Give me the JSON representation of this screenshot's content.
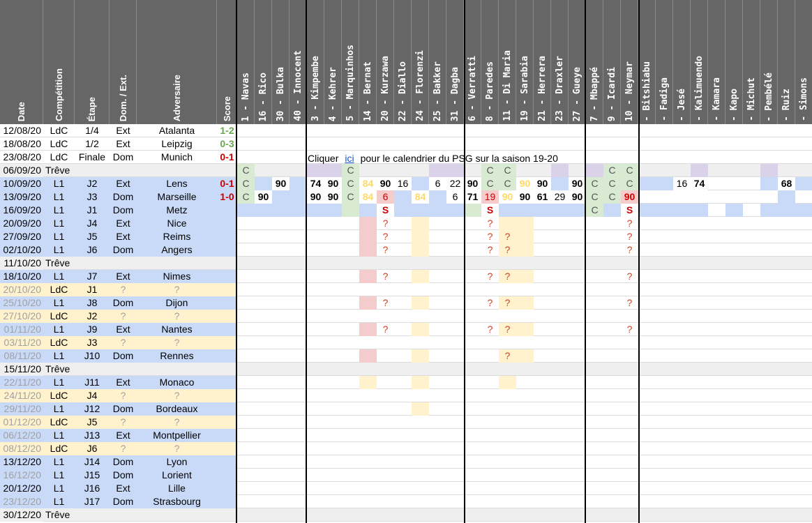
{
  "headers": {
    "left": [
      "Date",
      "Compétition",
      "Étape",
      "Dom. / Ext.",
      "Adversaire",
      "Score"
    ],
    "players": [
      "1 - Navas",
      "16 - Rico",
      "30 - Bulka",
      "40 - Innocent",
      "3 - Kimpembe",
      "4 - Kehrer",
      "5 - Marquinhos",
      "14 - Bernat",
      "20 - Kurzawa",
      "22 - Diallo",
      "24 - Florenzi",
      "25 - Bakker",
      "31 - Dagba",
      "6 - Verratti",
      "8 - Paredes",
      "11 - Di Maria",
      "19 - Sarabia",
      "21 - Herrera",
      "23 - Draxler",
      "27 - Gueye",
      "7 - Mbappé",
      "9 - Icardi",
      "10 - Neymar",
      "- Bitshiabu",
      "- Fadiga",
      "- Jesé",
      "- Kalimuendo",
      "- Kamara",
      "- Kapo",
      "- Michut",
      "- Pembélé",
      "- Ruiz",
      "- Simons"
    ]
  },
  "matches": [
    {
      "date": "12/08/20",
      "comp": "LdC",
      "stage": "1/4",
      "venue": "Ext",
      "opponent": "Atalanta",
      "score": "1-2",
      "score_color": "green",
      "row": "white"
    },
    {
      "date": "18/08/20",
      "comp": "LdC",
      "stage": "1/2",
      "venue": "Ext",
      "opponent": "Leipzig",
      "score": "0-3",
      "score_color": "green",
      "row": "white"
    },
    {
      "date": "23/08/20",
      "comp": "LdC",
      "stage": "Finale",
      "venue": "Dom",
      "opponent": "Munich",
      "score": "0-1",
      "score_color": "red",
      "row": "white"
    },
    {
      "date": "06/09/20",
      "comp": "Trêve",
      "stage": "",
      "venue": "",
      "opponent": "",
      "score": "",
      "row": "treve"
    },
    {
      "date": "10/09/20",
      "comp": "L1",
      "stage": "J2",
      "venue": "Ext",
      "opponent": "Lens",
      "score": "0-1",
      "score_color": "red",
      "row": "l1"
    },
    {
      "date": "13/09/20",
      "comp": "L1",
      "stage": "J3",
      "venue": "Dom",
      "opponent": "Marseille",
      "score": "1-0",
      "score_color": "red",
      "row": "l1"
    },
    {
      "date": "16/09/20",
      "comp": "L1",
      "stage": "J1",
      "venue": "Dom",
      "opponent": "Metz",
      "score": "",
      "row": "l1"
    },
    {
      "date": "20/09/20",
      "comp": "L1",
      "stage": "J4",
      "venue": "Ext",
      "opponent": "Nice",
      "score": "",
      "row": "l1"
    },
    {
      "date": "27/09/20",
      "comp": "L1",
      "stage": "J5",
      "venue": "Ext",
      "opponent": "Reims",
      "score": "",
      "row": "l1"
    },
    {
      "date": "02/10/20",
      "comp": "L1",
      "stage": "J6",
      "venue": "Dom",
      "opponent": "Angers",
      "score": "",
      "row": "l1"
    },
    {
      "date": "11/10/20",
      "comp": "Trêve",
      "stage": "",
      "venue": "",
      "opponent": "",
      "score": "",
      "row": "treve"
    },
    {
      "date": "18/10/20",
      "comp": "L1",
      "stage": "J7",
      "venue": "Ext",
      "opponent": "Nimes",
      "score": "",
      "row": "l1"
    },
    {
      "date": "20/10/20",
      "comp": "LdC",
      "stage": "J1",
      "venue": "?",
      "opponent": "?",
      "score": "",
      "row": "ldc"
    },
    {
      "date": "25/10/20",
      "comp": "L1",
      "stage": "J8",
      "venue": "Dom",
      "opponent": "Dijon",
      "score": "",
      "row": "l1f"
    },
    {
      "date": "27/10/20",
      "comp": "LdC",
      "stage": "J2",
      "venue": "?",
      "opponent": "?",
      "score": "",
      "row": "ldc"
    },
    {
      "date": "01/11/20",
      "comp": "L1",
      "stage": "J9",
      "venue": "Ext",
      "opponent": "Nantes",
      "score": "",
      "row": "l1f"
    },
    {
      "date": "03/11/20",
      "comp": "LdC",
      "stage": "J3",
      "venue": "?",
      "opponent": "?",
      "score": "",
      "row": "ldc"
    },
    {
      "date": "08/11/20",
      "comp": "L1",
      "stage": "J10",
      "venue": "Dom",
      "opponent": "Rennes",
      "score": "",
      "row": "l1f"
    },
    {
      "date": "15/11/20",
      "comp": "Trêve",
      "stage": "",
      "venue": "",
      "opponent": "",
      "score": "",
      "row": "treve"
    },
    {
      "date": "22/11/20",
      "comp": "L1",
      "stage": "J11",
      "venue": "Ext",
      "opponent": "Monaco",
      "score": "",
      "row": "l1f"
    },
    {
      "date": "24/11/20",
      "comp": "LdC",
      "stage": "J4",
      "venue": "?",
      "opponent": "?",
      "score": "",
      "row": "ldc"
    },
    {
      "date": "29/11/20",
      "comp": "L1",
      "stage": "J12",
      "venue": "Dom",
      "opponent": "Bordeaux",
      "score": "",
      "row": "l1f"
    },
    {
      "date": "01/12/20",
      "comp": "LdC",
      "stage": "J5",
      "venue": "?",
      "opponent": "?",
      "score": "",
      "row": "ldc"
    },
    {
      "date": "06/12/20",
      "comp": "L1",
      "stage": "J13",
      "venue": "Ext",
      "opponent": "Montpellier",
      "score": "",
      "row": "l1f"
    },
    {
      "date": "08/12/20",
      "comp": "LdC",
      "stage": "J6",
      "venue": "?",
      "opponent": "?",
      "score": "",
      "row": "ldc"
    },
    {
      "date": "13/12/20",
      "comp": "L1",
      "stage": "J14",
      "venue": "Dom",
      "opponent": "Lyon",
      "score": "",
      "row": "l1"
    },
    {
      "date": "16/12/20",
      "comp": "L1",
      "stage": "J15",
      "venue": "Dom",
      "opponent": "Lorient",
      "score": "",
      "row": "l1f"
    },
    {
      "date": "20/12/20",
      "comp": "L1",
      "stage": "J16",
      "venue": "Ext",
      "opponent": "Lille",
      "score": "",
      "row": "l1"
    },
    {
      "date": "23/12/20",
      "comp": "L1",
      "stage": "J17",
      "venue": "Dom",
      "opponent": "Strasbourg",
      "score": "",
      "row": "l1f"
    },
    {
      "date": "30/12/20",
      "comp": "Trêve",
      "stage": "",
      "venue": "",
      "opponent": "",
      "score": "",
      "row": "treve"
    }
  ],
  "notice": {
    "before": "Cliquer",
    "link": "ici",
    "after": "pour le calendrier du PSG sur la saison 19-20"
  },
  "player_cells": [
    {
      "r": 3,
      "c": 0,
      "t": "C",
      "f": "green",
      "s": "dgray"
    },
    {
      "r": 3,
      "c": 4,
      "f": "purple"
    },
    {
      "r": 3,
      "c": 5,
      "f": "purple"
    },
    {
      "r": 3,
      "c": 6,
      "t": "C",
      "f": "green",
      "s": "dgray"
    },
    {
      "r": 3,
      "c": 11,
      "f": "purple"
    },
    {
      "r": 3,
      "c": 12,
      "f": "purple"
    },
    {
      "r": 3,
      "c": 14,
      "t": "C",
      "f": "green",
      "s": "dgray"
    },
    {
      "r": 3,
      "c": 15,
      "t": "C",
      "f": "green",
      "s": "dgray"
    },
    {
      "r": 3,
      "c": 18,
      "f": "purple"
    },
    {
      "r": 3,
      "c": 20,
      "f": "purple"
    },
    {
      "r": 3,
      "c": 21,
      "t": "C",
      "f": "green",
      "s": "dgray"
    },
    {
      "r": 3,
      "c": 22,
      "t": "C",
      "f": "green",
      "s": "dgray"
    },
    {
      "r": 3,
      "c": 26,
      "f": "purple"
    },
    {
      "r": 3,
      "c": 30,
      "f": "purple"
    },
    {
      "r": 4,
      "c": 0,
      "t": "C",
      "f": "green",
      "s": "dgray"
    },
    {
      "r": 4,
      "c": 1,
      "f": "blue"
    },
    {
      "r": 4,
      "c": 2,
      "t": "90",
      "f": "white",
      "s": "bold"
    },
    {
      "r": 4,
      "c": 3,
      "f": "blue"
    },
    {
      "r": 4,
      "c": 4,
      "t": "74",
      "f": "white",
      "s": "bold"
    },
    {
      "r": 4,
      "c": 5,
      "t": "90",
      "f": "white",
      "s": "bold"
    },
    {
      "r": 4,
      "c": 6,
      "t": "C",
      "f": "green",
      "s": "dgray"
    },
    {
      "r": 4,
      "c": 7,
      "t": "84",
      "f": "white",
      "s": "gold"
    },
    {
      "r": 4,
      "c": 8,
      "t": "90",
      "f": "white",
      "s": "bold"
    },
    {
      "r": 4,
      "c": 9,
      "t": "16",
      "f": "white"
    },
    {
      "r": 4,
      "c": 10,
      "f": "blue"
    },
    {
      "r": 4,
      "c": 11,
      "t": "6",
      "f": "white"
    },
    {
      "r": 4,
      "c": 12,
      "t": "22",
      "f": "white"
    },
    {
      "r": 4,
      "c": 13,
      "t": "90",
      "f": "white",
      "s": "bold"
    },
    {
      "r": 4,
      "c": 14,
      "t": "C",
      "f": "green",
      "s": "dgray"
    },
    {
      "r": 4,
      "c": 15,
      "t": "C",
      "f": "green",
      "s": "dgray"
    },
    {
      "r": 4,
      "c": 16,
      "t": "90",
      "f": "white",
      "s": "gold"
    },
    {
      "r": 4,
      "c": 17,
      "t": "90",
      "f": "white",
      "s": "bold"
    },
    {
      "r": 4,
      "c": 18,
      "f": "blue"
    },
    {
      "r": 4,
      "c": 19,
      "t": "90",
      "f": "white",
      "s": "bold"
    },
    {
      "r": 4,
      "c": 20,
      "t": "C",
      "f": "green",
      "s": "dgray"
    },
    {
      "r": 4,
      "c": 21,
      "t": "C",
      "f": "green",
      "s": "dgray"
    },
    {
      "r": 4,
      "c": 22,
      "t": "C",
      "f": "green",
      "s": "dgray"
    },
    {
      "r": 4,
      "c": 23,
      "f": "blue"
    },
    {
      "r": 4,
      "c": 24,
      "f": "blue"
    },
    {
      "r": 4,
      "c": 25,
      "t": "16",
      "f": "white"
    },
    {
      "r": 4,
      "c": 26,
      "t": "74",
      "f": "white",
      "s": "bold"
    },
    {
      "r": 4,
      "c": 30,
      "f": "blue"
    },
    {
      "r": 4,
      "c": 31,
      "t": "68",
      "f": "white",
      "s": "bold"
    },
    {
      "r": 4,
      "c": 32,
      "f": "blue"
    },
    {
      "r": 5,
      "c": 0,
      "t": "C",
      "f": "green",
      "s": "dgray"
    },
    {
      "r": 5,
      "c": 1,
      "t": "90",
      "f": "white",
      "s": "bold"
    },
    {
      "r": 5,
      "c": 2,
      "f": "blue"
    },
    {
      "r": 5,
      "c": 3,
      "f": "blue"
    },
    {
      "r": 5,
      "c": 4,
      "t": "90",
      "f": "white",
      "s": "bold"
    },
    {
      "r": 5,
      "c": 5,
      "t": "90",
      "f": "white",
      "s": "bold"
    },
    {
      "r": 5,
      "c": 6,
      "t": "C",
      "f": "green",
      "s": "dgray"
    },
    {
      "r": 5,
      "c": 7,
      "t": "84",
      "f": "white",
      "s": "gold"
    },
    {
      "r": 5,
      "c": 8,
      "t": "6",
      "f": "red",
      "s": "redplain"
    },
    {
      "r": 5,
      "c": 9,
      "f": "blue"
    },
    {
      "r": 5,
      "c": 10,
      "t": "84",
      "f": "white",
      "s": "gold"
    },
    {
      "r": 5,
      "c": 11,
      "f": "blue"
    },
    {
      "r": 5,
      "c": 12,
      "t": "6",
      "f": "white"
    },
    {
      "r": 5,
      "c": 13,
      "t": "71",
      "f": "white",
      "s": "bold"
    },
    {
      "r": 5,
      "c": 14,
      "t": "19",
      "f": "red",
      "s": "redplain"
    },
    {
      "r": 5,
      "c": 15,
      "t": "90",
      "f": "white",
      "s": "gold"
    },
    {
      "r": 5,
      "c": 16,
      "t": "90",
      "f": "white",
      "s": "bold"
    },
    {
      "r": 5,
      "c": 17,
      "t": "61",
      "f": "white",
      "s": "bold"
    },
    {
      "r": 5,
      "c": 18,
      "t": "29",
      "f": "white"
    },
    {
      "r": 5,
      "c": 19,
      "t": "90",
      "f": "white",
      "s": "bold"
    },
    {
      "r": 5,
      "c": 20,
      "t": "C",
      "f": "green",
      "s": "dgray"
    },
    {
      "r": 5,
      "c": 21,
      "t": "C",
      "f": "green",
      "s": "dgray"
    },
    {
      "r": 5,
      "c": 22,
      "t": "90",
      "f": "red",
      "s": "red"
    },
    {
      "r": 5,
      "c": 31,
      "f": "blue"
    },
    {
      "r": 6,
      "c": 0,
      "f": "blue"
    },
    {
      "r": 6,
      "c": 1,
      "f": "blue"
    },
    {
      "r": 6,
      "c": 2,
      "f": "blue"
    },
    {
      "r": 6,
      "c": 3,
      "f": "blue"
    },
    {
      "r": 6,
      "c": 4,
      "f": "blue"
    },
    {
      "r": 6,
      "c": 5,
      "f": "blue"
    },
    {
      "r": 6,
      "c": 6,
      "f": "green"
    },
    {
      "r": 6,
      "c": 7,
      "f": "blue"
    },
    {
      "r": 6,
      "c": 8,
      "t": "S",
      "f": "white",
      "s": "red"
    },
    {
      "r": 6,
      "c": 9,
      "f": "blue"
    },
    {
      "r": 6,
      "c": 10,
      "f": "blue"
    },
    {
      "r": 6,
      "c": 11,
      "f": "blue"
    },
    {
      "r": 6,
      "c": 12,
      "f": "blue"
    },
    {
      "r": 6,
      "c": 13,
      "f": "green"
    },
    {
      "r": 6,
      "c": 14,
      "t": "S",
      "f": "white",
      "s": "red"
    },
    {
      "r": 6,
      "c": 15,
      "f": "blue"
    },
    {
      "r": 6,
      "c": 16,
      "f": "blue"
    },
    {
      "r": 6,
      "c": 17,
      "f": "blue"
    },
    {
      "r": 6,
      "c": 18,
      "f": "blue"
    },
    {
      "r": 6,
      "c": 19,
      "f": "blue"
    },
    {
      "r": 6,
      "c": 20,
      "t": "C",
      "f": "green",
      "s": "dgray"
    },
    {
      "r": 6,
      "c": 21,
      "f": "blue"
    },
    {
      "r": 6,
      "c": 22,
      "t": "S",
      "f": "white",
      "s": "red"
    },
    {
      "r": 6,
      "c": 23,
      "f": "blue"
    },
    {
      "r": 6,
      "c": 24,
      "f": "blue"
    },
    {
      "r": 6,
      "c": 25,
      "f": "blue"
    },
    {
      "r": 6,
      "c": 26,
      "f": "blue"
    },
    {
      "r": 6,
      "c": 28,
      "f": "blue"
    },
    {
      "r": 6,
      "c": 30,
      "f": "blue"
    },
    {
      "r": 6,
      "c": 31,
      "f": "blue"
    },
    {
      "r": 6,
      "c": 32,
      "f": "blue"
    },
    {
      "r": 7,
      "c": 7,
      "f": "red"
    },
    {
      "r": 7,
      "c": 8,
      "t": "?",
      "s": "q"
    },
    {
      "r": 7,
      "c": 10,
      "f": "yel"
    },
    {
      "r": 7,
      "c": 14,
      "t": "?",
      "s": "q"
    },
    {
      "r": 7,
      "c": 15,
      "f": "yel"
    },
    {
      "r": 7,
      "c": 16,
      "f": "yel"
    },
    {
      "r": 7,
      "c": 22,
      "t": "?",
      "s": "q"
    },
    {
      "r": 8,
      "c": 7,
      "f": "red"
    },
    {
      "r": 8,
      "c": 8,
      "t": "?",
      "s": "q"
    },
    {
      "r": 8,
      "c": 10,
      "f": "yel"
    },
    {
      "r": 8,
      "c": 14,
      "t": "?",
      "s": "q"
    },
    {
      "r": 8,
      "c": 15,
      "t": "?",
      "f": "yel",
      "s": "q"
    },
    {
      "r": 8,
      "c": 16,
      "f": "yel"
    },
    {
      "r": 8,
      "c": 22,
      "t": "?",
      "s": "q"
    },
    {
      "r": 9,
      "c": 7,
      "f": "red"
    },
    {
      "r": 9,
      "c": 8,
      "t": "?",
      "s": "q"
    },
    {
      "r": 9,
      "c": 10,
      "f": "yel"
    },
    {
      "r": 9,
      "c": 14,
      "t": "?",
      "s": "q"
    },
    {
      "r": 9,
      "c": 15,
      "t": "?",
      "f": "yel",
      "s": "q"
    },
    {
      "r": 9,
      "c": 16,
      "f": "yel"
    },
    {
      "r": 9,
      "c": 22,
      "t": "?",
      "s": "q"
    },
    {
      "r": 11,
      "c": 7,
      "f": "red"
    },
    {
      "r": 11,
      "c": 8,
      "t": "?",
      "s": "q"
    },
    {
      "r": 11,
      "c": 10,
      "f": "yel"
    },
    {
      "r": 11,
      "c": 14,
      "t": "?",
      "s": "q"
    },
    {
      "r": 11,
      "c": 15,
      "t": "?",
      "f": "yel",
      "s": "q"
    },
    {
      "r": 11,
      "c": 16,
      "f": "yel"
    },
    {
      "r": 11,
      "c": 22,
      "t": "?",
      "s": "q"
    },
    {
      "r": 13,
      "c": 7,
      "f": "red"
    },
    {
      "r": 13,
      "c": 8,
      "t": "?",
      "s": "q"
    },
    {
      "r": 13,
      "c": 10,
      "f": "yel"
    },
    {
      "r": 13,
      "c": 14,
      "t": "?",
      "s": "q"
    },
    {
      "r": 13,
      "c": 15,
      "t": "?",
      "f": "yel",
      "s": "q"
    },
    {
      "r": 13,
      "c": 16,
      "f": "yel"
    },
    {
      "r": 13,
      "c": 22,
      "t": "?",
      "s": "q"
    },
    {
      "r": 15,
      "c": 7,
      "f": "red"
    },
    {
      "r": 15,
      "c": 8,
      "t": "?",
      "s": "q"
    },
    {
      "r": 15,
      "c": 10,
      "f": "yel"
    },
    {
      "r": 15,
      "c": 14,
      "t": "?",
      "s": "q"
    },
    {
      "r": 15,
      "c": 15,
      "t": "?",
      "f": "yel",
      "s": "q"
    },
    {
      "r": 15,
      "c": 16,
      "f": "yel"
    },
    {
      "r": 15,
      "c": 22,
      "t": "?",
      "s": "q"
    },
    {
      "r": 17,
      "c": 7,
      "f": "red"
    },
    {
      "r": 17,
      "c": 10,
      "f": "yel"
    },
    {
      "r": 17,
      "c": 15,
      "t": "?",
      "f": "yel",
      "s": "q"
    },
    {
      "r": 17,
      "c": 16,
      "f": "yel"
    },
    {
      "r": 19,
      "c": 7,
      "f": "yel"
    },
    {
      "r": 19,
      "c": 10,
      "f": "yel"
    },
    {
      "r": 19,
      "c": 15,
      "f": "yel"
    },
    {
      "r": 21,
      "c": 10,
      "f": "yel"
    }
  ]
}
